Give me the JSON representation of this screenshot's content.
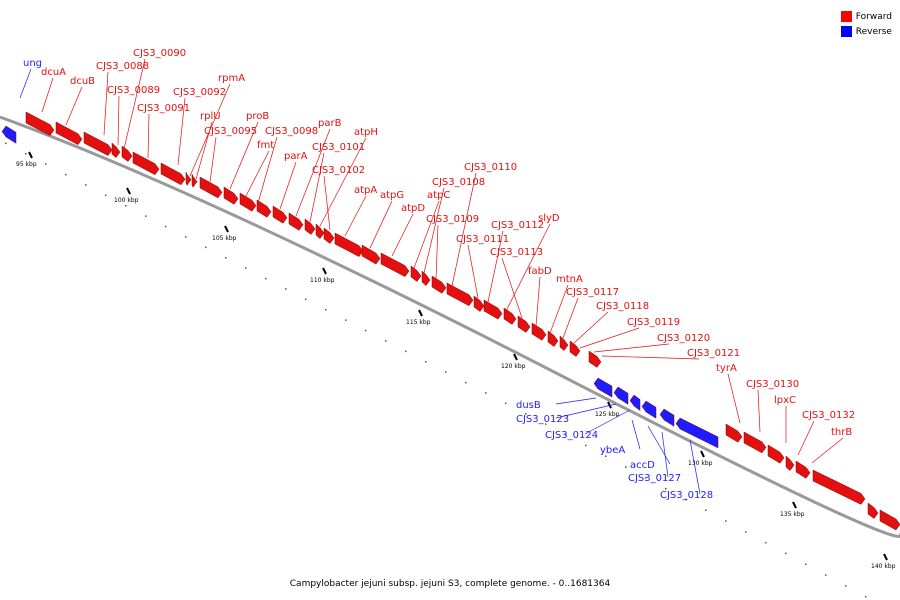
{
  "legend": {
    "forward_label": "Forward",
    "reverse_label": "Reverse",
    "forward_color": "#ff0000",
    "reverse_color": "#0000ff"
  },
  "caption": "Campylobacter jejuni subsp. jejuni S3, complete genome. - 0..1681364",
  "strand_colors": {
    "forward": "#e41010",
    "reverse": "#1d1dff",
    "backbone": "#9a9a9a"
  },
  "ticks": [
    "95 kbp",
    "100 kbp",
    "105 kbp",
    "110 kbp",
    "115 kbp",
    "120 kbp",
    "125 kbp",
    "130 kbp",
    "135 kbp",
    "140 kbp"
  ],
  "forward_genes": [
    "dcuA",
    "dcuB",
    "CJS3_0088",
    "CJS3_0089",
    "CJS3_0090",
    "CJS3_0091",
    "CJS3_0092",
    "rpmA",
    "rplU",
    "CJS3_0095",
    "proB",
    "fmt",
    "CJS3_0098",
    "parA",
    "parB",
    "CJS3_0101",
    "atpH",
    "CJS3_0102",
    "atpA",
    "atpG",
    "atpD",
    "atpC",
    "CJS3_0108",
    "CJS3_0109",
    "CJS3_0110",
    "CJS3_0111",
    "CJS3_0112",
    "slyD",
    "CJS3_0113",
    "fabD",
    "mtnA",
    "CJS3_0117",
    "CJS3_0118",
    "CJS3_0119",
    "CJS3_0120",
    "CJS3_0121",
    "tyrA",
    "CJS3_0130",
    "lpxC",
    "CJS3_0132",
    "thrB"
  ],
  "reverse_genes": [
    "ung",
    "dusB",
    "CJS3_0123",
    "CJS3_0124",
    "ybeA",
    "accD",
    "CJS3_0127",
    "CJS3_0128"
  ]
}
